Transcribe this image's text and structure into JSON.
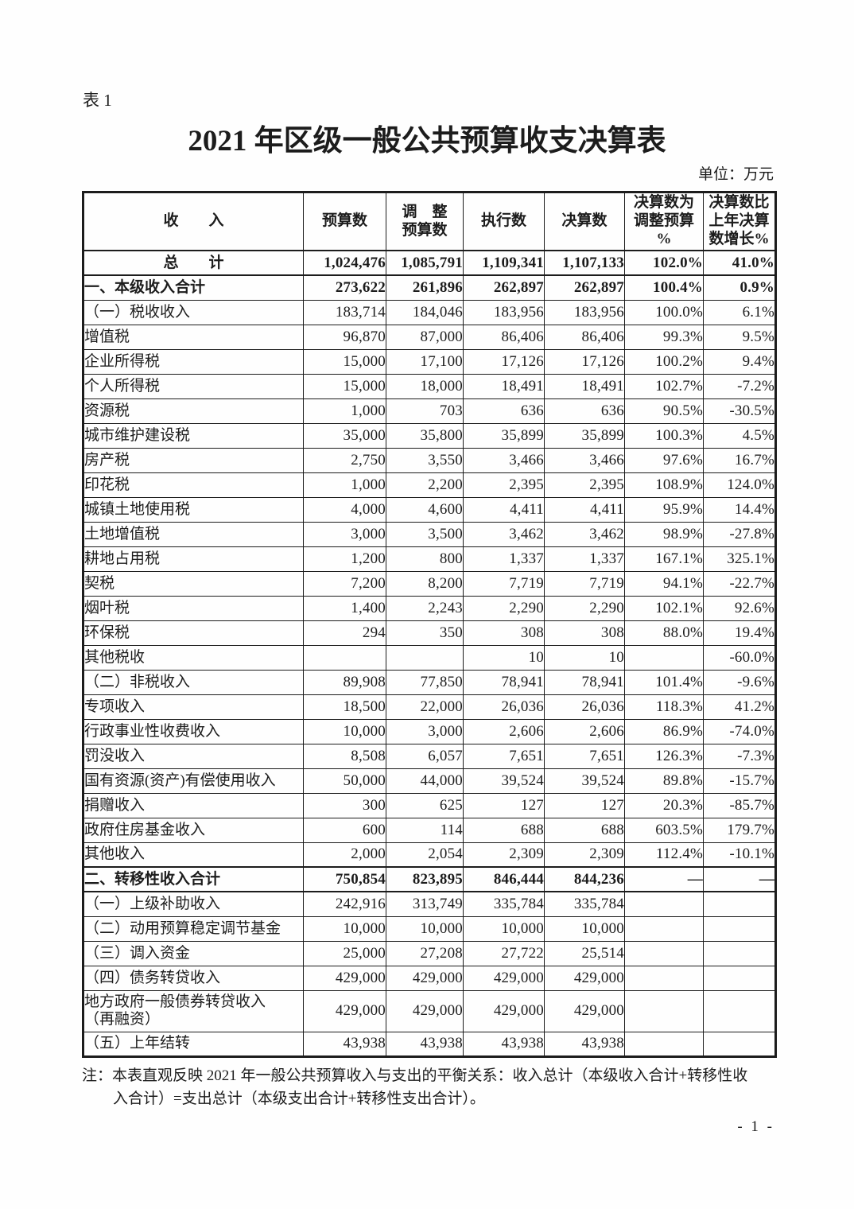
{
  "page": {
    "table_label": "表 1",
    "title": "2021 年区级一般公共预算收支决算表",
    "unit_label": "单位：万元",
    "note": "注：本表直观反映 2021 年一般公共预算收入与支出的平衡关系：收入总计（本级收入合计+转移性收\n入合计）=支出总计（本级支出合计+转移性支出合计）。",
    "page_number": "- 1 -"
  },
  "colors": {
    "text": "#1c1c1c",
    "background": "#fefefe",
    "border": "#1c1c1c"
  },
  "table": {
    "headers": [
      "收　　入",
      "预算数",
      "调　整\n预算数",
      "执行数",
      "决算数",
      "决算数为\n调整预算\n%",
      "决算数比\n上年决算\n数增长%"
    ],
    "rows": [
      {
        "label": "总　　计",
        "style": "total",
        "cells": [
          "1,024,476",
          "1,085,791",
          "1,109,341",
          "1,107,133",
          "102.0%",
          "41.0%"
        ]
      },
      {
        "label": "一、本级收入合计",
        "style": "section",
        "cells": [
          "273,622",
          "261,896",
          "262,897",
          "262,897",
          "100.4%",
          "0.9%"
        ]
      },
      {
        "label": "（一）税收收入",
        "style": "",
        "cells": [
          "183,714",
          "184,046",
          "183,956",
          "183,956",
          "100.0%",
          "6.1%"
        ]
      },
      {
        "label": "增值税",
        "style": "",
        "cells": [
          "96,870",
          "87,000",
          "86,406",
          "86,406",
          "99.3%",
          "9.5%"
        ]
      },
      {
        "label": "企业所得税",
        "style": "",
        "cells": [
          "15,000",
          "17,100",
          "17,126",
          "17,126",
          "100.2%",
          "9.4%"
        ]
      },
      {
        "label": "个人所得税",
        "style": "",
        "cells": [
          "15,000",
          "18,000",
          "18,491",
          "18,491",
          "102.7%",
          "-7.2%"
        ]
      },
      {
        "label": "资源税",
        "style": "",
        "cells": [
          "1,000",
          "703",
          "636",
          "636",
          "90.5%",
          "-30.5%"
        ]
      },
      {
        "label": "城市维护建设税",
        "style": "",
        "cells": [
          "35,000",
          "35,800",
          "35,899",
          "35,899",
          "100.3%",
          "4.5%"
        ]
      },
      {
        "label": "房产税",
        "style": "",
        "cells": [
          "2,750",
          "3,550",
          "3,466",
          "3,466",
          "97.6%",
          "16.7%"
        ]
      },
      {
        "label": "印花税",
        "style": "",
        "cells": [
          "1,000",
          "2,200",
          "2,395",
          "2,395",
          "108.9%",
          "124.0%"
        ]
      },
      {
        "label": "城镇土地使用税",
        "style": "",
        "cells": [
          "4,000",
          "4,600",
          "4,411",
          "4,411",
          "95.9%",
          "14.4%"
        ]
      },
      {
        "label": "土地增值税",
        "style": "",
        "cells": [
          "3,000",
          "3,500",
          "3,462",
          "3,462",
          "98.9%",
          "-27.8%"
        ]
      },
      {
        "label": "耕地占用税",
        "style": "",
        "cells": [
          "1,200",
          "800",
          "1,337",
          "1,337",
          "167.1%",
          "325.1%"
        ]
      },
      {
        "label": "契税",
        "style": "",
        "cells": [
          "7,200",
          "8,200",
          "7,719",
          "7,719",
          "94.1%",
          "-22.7%"
        ]
      },
      {
        "label": "烟叶税",
        "style": "",
        "cells": [
          "1,400",
          "2,243",
          "2,290",
          "2,290",
          "102.1%",
          "92.6%"
        ]
      },
      {
        "label": "环保税",
        "style": "",
        "cells": [
          "294",
          "350",
          "308",
          "308",
          "88.0%",
          "19.4%"
        ]
      },
      {
        "label": "其他税收",
        "style": "",
        "cells": [
          "",
          "",
          "10",
          "10",
          "",
          "-60.0%"
        ]
      },
      {
        "label": "（二）非税收入",
        "style": "",
        "cells": [
          "89,908",
          "77,850",
          "78,941",
          "78,941",
          "101.4%",
          "-9.6%"
        ]
      },
      {
        "label": "专项收入",
        "style": "",
        "cells": [
          "18,500",
          "22,000",
          "26,036",
          "26,036",
          "118.3%",
          "41.2%"
        ]
      },
      {
        "label": "行政事业性收费收入",
        "style": "",
        "cells": [
          "10,000",
          "3,000",
          "2,606",
          "2,606",
          "86.9%",
          "-74.0%"
        ]
      },
      {
        "label": "罚没收入",
        "style": "",
        "cells": [
          "8,508",
          "6,057",
          "7,651",
          "7,651",
          "126.3%",
          "-7.3%"
        ]
      },
      {
        "label": "国有资源(资产)有偿使用收入",
        "style": "",
        "cells": [
          "50,000",
          "44,000",
          "39,524",
          "39,524",
          "89.8%",
          "-15.7%"
        ]
      },
      {
        "label": "捐赠收入",
        "style": "",
        "cells": [
          "300",
          "625",
          "127",
          "127",
          "20.3%",
          "-85.7%"
        ]
      },
      {
        "label": "政府住房基金收入",
        "style": "",
        "cells": [
          "600",
          "114",
          "688",
          "688",
          "603.5%",
          "179.7%"
        ]
      },
      {
        "label": "其他收入",
        "style": "",
        "cells": [
          "2,000",
          "2,054",
          "2,309",
          "2,309",
          "112.4%",
          "-10.1%"
        ]
      },
      {
        "label": "二、转移性收入合计",
        "style": "section2",
        "cells": [
          "750,854",
          "823,895",
          "846,444",
          "844,236",
          "—",
          "—"
        ]
      },
      {
        "label": "（一）上级补助收入",
        "style": "",
        "cells": [
          "242,916",
          "313,749",
          "335,784",
          "335,784",
          "",
          ""
        ]
      },
      {
        "label": "（二）动用预算稳定调节基金",
        "style": "",
        "cells": [
          "10,000",
          "10,000",
          "10,000",
          "10,000",
          "",
          ""
        ]
      },
      {
        "label": "（三）调入资金",
        "style": "",
        "cells": [
          "25,000",
          "27,208",
          "27,722",
          "25,514",
          "",
          ""
        ]
      },
      {
        "label": "（四）债务转贷收入",
        "style": "",
        "cells": [
          "429,000",
          "429,000",
          "429,000",
          "429,000",
          "",
          ""
        ]
      },
      {
        "label": "地方政府一般债券转贷收入\n（再融资）",
        "style": "tall",
        "cells": [
          "429,000",
          "429,000",
          "429,000",
          "429,000",
          "",
          ""
        ]
      },
      {
        "label": "（五）上年结转",
        "style": "",
        "cells": [
          "43,938",
          "43,938",
          "43,938",
          "43,938",
          "",
          ""
        ]
      }
    ]
  }
}
